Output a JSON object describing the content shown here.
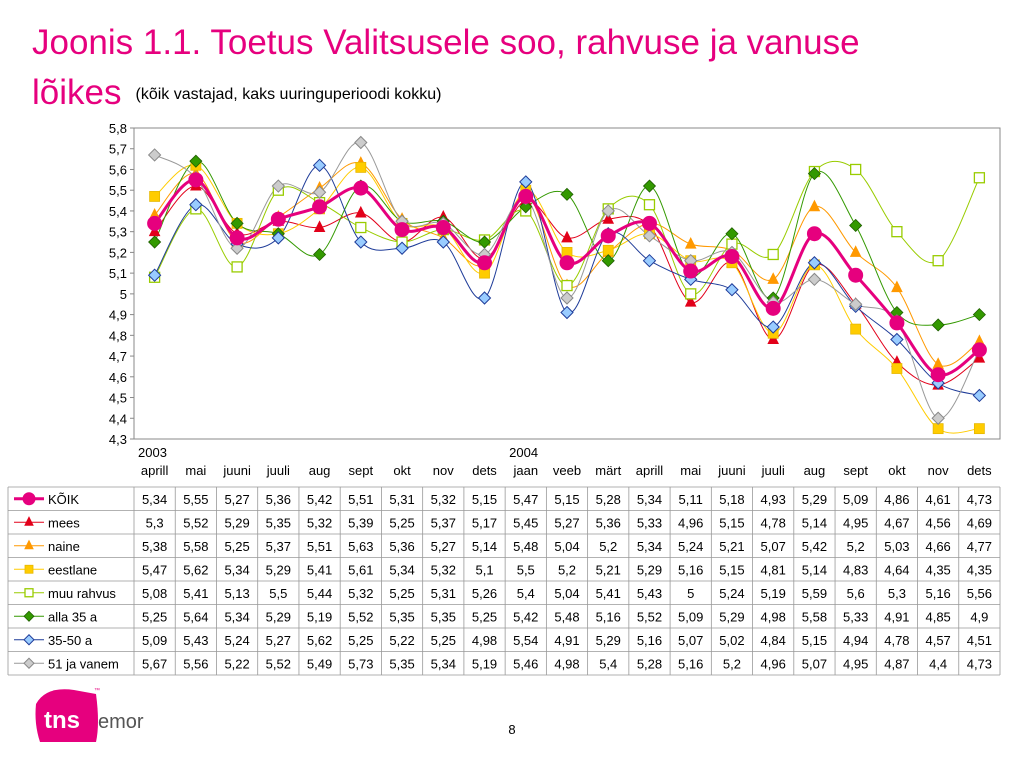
{
  "title": {
    "main_line1": "Joonis 1.1. Toetus Valitsusele soo, rahvuse ja vanuse",
    "main_line2": "lõikes",
    "subtitle": "(kõik vastajad, kaks uuringuperioodi kokku)"
  },
  "page_number": "8",
  "logo": {
    "text_tns": "tns",
    "text_emor": "emor",
    "tm": "™",
    "color": "#e6007e"
  },
  "chart_data": {
    "type": "line",
    "ylim": [
      4.3,
      5.8
    ],
    "y_ticks": [
      "5,8",
      "5,7",
      "5,6",
      "5,5",
      "5,4",
      "5,3",
      "5,2",
      "5,1",
      "5",
      "4,9",
      "4,8",
      "4,7",
      "4,6",
      "4,5",
      "4,4",
      "4,3"
    ],
    "years": [
      {
        "label": "2003",
        "start_index": 0
      },
      {
        "label": "2004",
        "start_index": 9
      }
    ],
    "categories": [
      "aprill",
      "mai",
      "juuni",
      "juuli",
      "aug",
      "sept",
      "okt",
      "nov",
      "dets",
      "jaan",
      "veeb",
      "märt",
      "aprill",
      "mai",
      "juuni",
      "juuli",
      "aug",
      "sept",
      "okt",
      "nov",
      "dets"
    ],
    "grid": false,
    "legend": "table below chart",
    "series": [
      {
        "name": "KÕIK",
        "color": "#e6007e",
        "marker": "circle",
        "width": 3,
        "values": [
          5.34,
          5.55,
          5.27,
          5.36,
          5.42,
          5.51,
          5.31,
          5.32,
          5.15,
          5.47,
          5.15,
          5.28,
          5.34,
          5.11,
          5.18,
          4.93,
          5.29,
          5.09,
          4.86,
          4.61,
          4.73
        ],
        "labels": [
          "5,34",
          "5,55",
          "5,27",
          "5,36",
          "5,42",
          "5,51",
          "5,31",
          "5,32",
          "5,15",
          "5,47",
          "5,15",
          "5,28",
          "5,34",
          "5,11",
          "5,18",
          "4,93",
          "5,29",
          "5,09",
          "4,86",
          "4,61",
          "4,73"
        ]
      },
      {
        "name": "mees",
        "color": "#e2001a",
        "marker": "triangle",
        "width": 1,
        "values": [
          5.3,
          5.52,
          5.29,
          5.35,
          5.32,
          5.39,
          5.25,
          5.37,
          5.17,
          5.45,
          5.27,
          5.36,
          5.33,
          4.96,
          5.15,
          4.78,
          5.14,
          4.95,
          4.67,
          4.56,
          4.69
        ],
        "labels": [
          "5,3",
          "5,52",
          "5,29",
          "5,35",
          "5,32",
          "5,39",
          "5,25",
          "5,37",
          "5,17",
          "5,45",
          "5,27",
          "5,36",
          "5,33",
          "4,96",
          "5,15",
          "4,78",
          "5,14",
          "4,95",
          "4,67",
          "4,56",
          "4,69"
        ]
      },
      {
        "name": "naine",
        "color": "#ff9900",
        "marker": "triangle",
        "width": 1,
        "values": [
          5.38,
          5.58,
          5.25,
          5.37,
          5.51,
          5.63,
          5.36,
          5.27,
          5.14,
          5.48,
          5.04,
          5.2,
          5.34,
          5.24,
          5.21,
          5.07,
          5.42,
          5.2,
          5.03,
          4.66,
          4.77
        ],
        "labels": [
          "5,38",
          "5,58",
          "5,25",
          "5,37",
          "5,51",
          "5,63",
          "5,36",
          "5,27",
          "5,14",
          "5,48",
          "5,04",
          "5,2",
          "5,34",
          "5,24",
          "5,21",
          "5,07",
          "5,42",
          "5,2",
          "5,03",
          "4,66",
          "4,77"
        ]
      },
      {
        "name": "eestlane",
        "color": "#ffcc00",
        "marker": "square",
        "width": 1,
        "values": [
          5.47,
          5.62,
          5.34,
          5.29,
          5.41,
          5.61,
          5.34,
          5.32,
          5.1,
          5.5,
          5.2,
          5.21,
          5.29,
          5.16,
          5.15,
          4.81,
          5.14,
          4.83,
          4.64,
          4.35,
          4.35
        ],
        "labels": [
          "5,47",
          "5,62",
          "5,34",
          "5,29",
          "5,41",
          "5,61",
          "5,34",
          "5,32",
          "5,1",
          "5,5",
          "5,2",
          "5,21",
          "5,29",
          "5,16",
          "5,15",
          "4,81",
          "5,14",
          "4,83",
          "4,64",
          "4,35",
          "4,35"
        ]
      },
      {
        "name": "muu rahvus",
        "color": "#99cc00",
        "marker": "square-open",
        "width": 1,
        "values": [
          5.08,
          5.41,
          5.13,
          5.5,
          5.44,
          5.32,
          5.25,
          5.31,
          5.26,
          5.4,
          5.04,
          5.41,
          5.43,
          5.0,
          5.24,
          5.19,
          5.59,
          5.6,
          5.3,
          5.16,
          5.56
        ],
        "labels": [
          "5,08",
          "5,41",
          "5,13",
          "5,5",
          "5,44",
          "5,32",
          "5,25",
          "5,31",
          "5,26",
          "5,4",
          "5,04",
          "5,41",
          "5,43",
          "5",
          "5,24",
          "5,19",
          "5,59",
          "5,6",
          "5,3",
          "5,16",
          "5,56"
        ]
      },
      {
        "name": "alla 35 a",
        "color": "#339900",
        "marker": "diamond",
        "width": 1,
        "values": [
          5.25,
          5.64,
          5.34,
          5.29,
          5.19,
          5.52,
          5.35,
          5.35,
          5.25,
          5.42,
          5.48,
          5.16,
          5.52,
          5.09,
          5.29,
          4.98,
          5.58,
          5.33,
          4.91,
          4.85,
          4.9
        ],
        "labels": [
          "5,25",
          "5,64",
          "5,34",
          "5,29",
          "5,19",
          "5,52",
          "5,35",
          "5,35",
          "5,25",
          "5,42",
          "5,48",
          "5,16",
          "5,52",
          "5,09",
          "5,29",
          "4,98",
          "5,58",
          "5,33",
          "4,91",
          "4,85",
          "4,9"
        ]
      },
      {
        "name": "35-50 a",
        "color": "#1f3c99",
        "marker": "diamond-blue",
        "width": 1,
        "values": [
          5.09,
          5.43,
          5.24,
          5.27,
          5.62,
          5.25,
          5.22,
          5.25,
          4.98,
          5.54,
          4.91,
          5.29,
          5.16,
          5.07,
          5.02,
          4.84,
          5.15,
          4.94,
          4.78,
          4.57,
          4.51
        ],
        "labels": [
          "5,09",
          "5,43",
          "5,24",
          "5,27",
          "5,62",
          "5,25",
          "5,22",
          "5,25",
          "4,98",
          "5,54",
          "4,91",
          "5,29",
          "5,16",
          "5,07",
          "5,02",
          "4,84",
          "5,15",
          "4,94",
          "4,78",
          "4,57",
          "4,51"
        ]
      },
      {
        "name": "51 ja vanem",
        "color": "#999999",
        "marker": "diamond-grey",
        "width": 1,
        "values": [
          5.67,
          5.56,
          5.22,
          5.52,
          5.49,
          5.73,
          5.35,
          5.34,
          5.19,
          5.46,
          4.98,
          5.4,
          5.28,
          5.16,
          5.2,
          4.96,
          5.07,
          4.95,
          4.87,
          4.4,
          4.73
        ],
        "labels": [
          "5,67",
          "5,56",
          "5,22",
          "5,52",
          "5,49",
          "5,73",
          "5,35",
          "5,34",
          "5,19",
          "5,46",
          "4,98",
          "5,4",
          "5,28",
          "5,16",
          "5,2",
          "4,96",
          "5,07",
          "4,95",
          "4,87",
          "4,4",
          "4,73"
        ]
      }
    ]
  }
}
